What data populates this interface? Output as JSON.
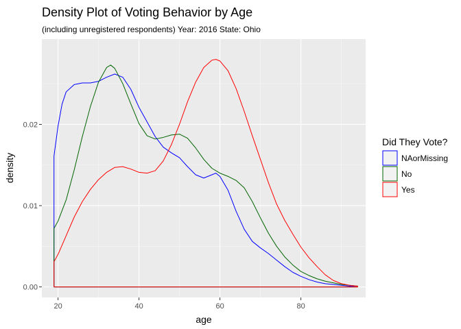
{
  "chart_data": {
    "type": "line",
    "title": "Density Plot of Voting Behavior by Age",
    "subtitle": "(including unregistered respondents) Year: 2016 State: Ohio",
    "xlabel": "age",
    "ylabel": "density",
    "xlim": [
      16,
      96
    ],
    "ylim": [
      -0.0013,
      0.0305
    ],
    "xticks": [
      20,
      40,
      60,
      80
    ],
    "xtick_labels": [
      "20",
      "40",
      "60",
      "80"
    ],
    "yticks": [
      0.0,
      0.01,
      0.02
    ],
    "ytick_labels": [
      "0.00",
      "0.01",
      "0.02"
    ],
    "grid": true,
    "legend": {
      "title": "Did They Vote?",
      "position": "right",
      "entries": [
        "NAorMissing",
        "No",
        "Yes"
      ]
    },
    "series": [
      {
        "name": "NAorMissing",
        "color": "#0000FF",
        "points": [
          [
            19,
            0
          ],
          [
            19,
            0.0161
          ],
          [
            20,
            0.0198
          ],
          [
            21,
            0.0225
          ],
          [
            22,
            0.024
          ],
          [
            24,
            0.0249
          ],
          [
            26,
            0.0251
          ],
          [
            28,
            0.0251
          ],
          [
            30,
            0.0253
          ],
          [
            32,
            0.0258
          ],
          [
            34,
            0.0262
          ],
          [
            36,
            0.0258
          ],
          [
            38,
            0.0243
          ],
          [
            40,
            0.0221
          ],
          [
            42,
            0.0203
          ],
          [
            44,
            0.0185
          ],
          [
            46,
            0.0172
          ],
          [
            48,
            0.0165
          ],
          [
            50,
            0.0159
          ],
          [
            52,
            0.0148
          ],
          [
            54,
            0.0138
          ],
          [
            56,
            0.0134
          ],
          [
            58,
            0.0138
          ],
          [
            59,
            0.014
          ],
          [
            60,
            0.0136
          ],
          [
            62,
            0.0119
          ],
          [
            64,
            0.0093
          ],
          [
            66,
            0.0071
          ],
          [
            68,
            0.0056
          ],
          [
            70,
            0.0048
          ],
          [
            72,
            0.0041
          ],
          [
            74,
            0.0033
          ],
          [
            76,
            0.0025
          ],
          [
            78,
            0.0018
          ],
          [
            80,
            0.0013
          ],
          [
            82,
            0.0009
          ],
          [
            84,
            0.0006
          ],
          [
            86,
            0.0004
          ],
          [
            88,
            0.0003
          ],
          [
            90,
            0.0002
          ],
          [
            92,
            0.0001
          ],
          [
            94,
            0
          ],
          [
            19,
            0
          ]
        ]
      },
      {
        "name": "No",
        "color": "#006400",
        "points": [
          [
            19,
            0
          ],
          [
            19,
            0.0072
          ],
          [
            20,
            0.0081
          ],
          [
            22,
            0.0107
          ],
          [
            24,
            0.0144
          ],
          [
            26,
            0.0185
          ],
          [
            28,
            0.0222
          ],
          [
            30,
            0.0252
          ],
          [
            32,
            0.027
          ],
          [
            33,
            0.0273
          ],
          [
            34,
            0.0269
          ],
          [
            36,
            0.025
          ],
          [
            38,
            0.0225
          ],
          [
            40,
            0.0201
          ],
          [
            42,
            0.0186
          ],
          [
            44,
            0.0182
          ],
          [
            46,
            0.0184
          ],
          [
            48,
            0.0187
          ],
          [
            50,
            0.0188
          ],
          [
            52,
            0.0183
          ],
          [
            54,
            0.0171
          ],
          [
            56,
            0.0157
          ],
          [
            58,
            0.0146
          ],
          [
            60,
            0.014
          ],
          [
            62,
            0.0136
          ],
          [
            64,
            0.0131
          ],
          [
            66,
            0.0122
          ],
          [
            68,
            0.0105
          ],
          [
            70,
            0.0085
          ],
          [
            72,
            0.0066
          ],
          [
            74,
            0.005
          ],
          [
            76,
            0.0037
          ],
          [
            78,
            0.0027
          ],
          [
            80,
            0.0019
          ],
          [
            82,
            0.0014
          ],
          [
            84,
            0.001
          ],
          [
            86,
            0.0007
          ],
          [
            88,
            0.0005
          ],
          [
            90,
            0.0003
          ],
          [
            92,
            0.0002
          ],
          [
            94,
            0.0001
          ],
          [
            94,
            0
          ],
          [
            19,
            0
          ]
        ]
      },
      {
        "name": "Yes",
        "color": "#FF0000",
        "points": [
          [
            19,
            0
          ],
          [
            19,
            0.0031
          ],
          [
            20,
            0.004
          ],
          [
            22,
            0.0063
          ],
          [
            24,
            0.0086
          ],
          [
            26,
            0.0105
          ],
          [
            28,
            0.012
          ],
          [
            30,
            0.0132
          ],
          [
            32,
            0.0141
          ],
          [
            34,
            0.0147
          ],
          [
            36,
            0.0148
          ],
          [
            38,
            0.0145
          ],
          [
            40,
            0.0141
          ],
          [
            42,
            0.014
          ],
          [
            44,
            0.0143
          ],
          [
            46,
            0.0155
          ],
          [
            48,
            0.0175
          ],
          [
            50,
            0.02
          ],
          [
            52,
            0.0228
          ],
          [
            54,
            0.0252
          ],
          [
            56,
            0.027
          ],
          [
            58,
            0.0279
          ],
          [
            59,
            0.028
          ],
          [
            60,
            0.0278
          ],
          [
            62,
            0.0266
          ],
          [
            64,
            0.0244
          ],
          [
            66,
            0.0216
          ],
          [
            68,
            0.0186
          ],
          [
            70,
            0.0157
          ],
          [
            72,
            0.0128
          ],
          [
            74,
            0.0102
          ],
          [
            76,
            0.0082
          ],
          [
            78,
            0.0065
          ],
          [
            80,
            0.0049
          ],
          [
            82,
            0.0036
          ],
          [
            84,
            0.0025
          ],
          [
            86,
            0.0015
          ],
          [
            88,
            0.0008
          ],
          [
            90,
            0.0004
          ],
          [
            92,
            0.0002
          ],
          [
            94,
            0.0001
          ],
          [
            94,
            0
          ],
          [
            19,
            0
          ]
        ]
      }
    ]
  }
}
